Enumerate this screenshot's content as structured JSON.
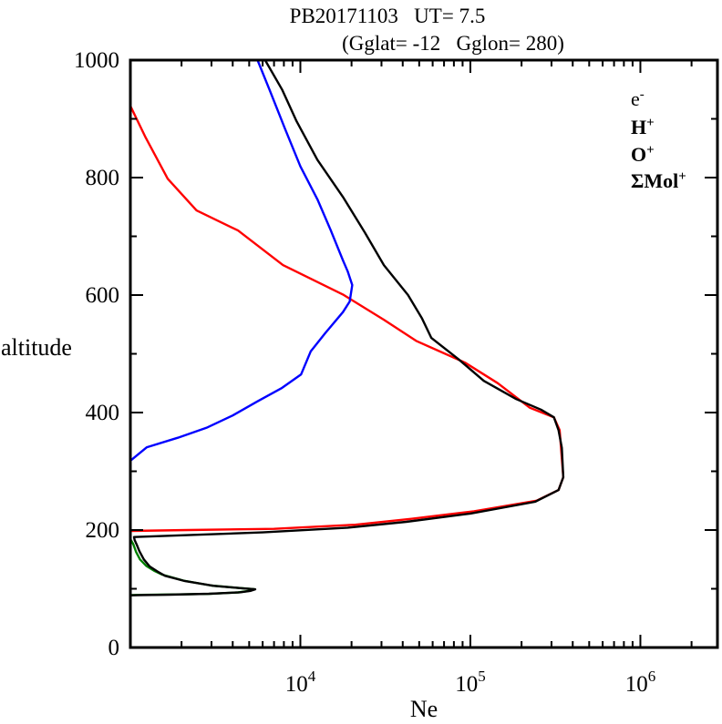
{
  "title": {
    "line1": "PB20171103   UT= 7.5",
    "line2": "(Gglat= -12   Gglon= 280)"
  },
  "axes": {
    "x": {
      "label": "Ne",
      "scale": "log",
      "min": 1000,
      "max": 2840000,
      "major_ticks": [
        {
          "value": 10000,
          "base": "10",
          "exp": "4"
        },
        {
          "value": 100000,
          "base": "10",
          "exp": "5"
        },
        {
          "value": 1000000,
          "base": "10",
          "exp": "6"
        }
      ]
    },
    "y": {
      "label": "altitude",
      "min": 0,
      "max": 1000,
      "major_step": 200,
      "minor_step": 100,
      "major_ticks": [
        {
          "value": 0,
          "label": "0"
        },
        {
          "value": 200,
          "label": "200"
        },
        {
          "value": 400,
          "label": "400"
        },
        {
          "value": 600,
          "label": "600"
        },
        {
          "value": 800,
          "label": "800"
        },
        {
          "value": 1000,
          "label": "1000"
        }
      ]
    }
  },
  "legend": [
    {
      "label": "e",
      "sup": "-",
      "color": "#000000",
      "bold": false
    },
    {
      "label": "H",
      "sup": "+",
      "color": "#0000ff",
      "bold": true
    },
    {
      "label": "O",
      "sup": "+",
      "color": "#ff0000",
      "bold": true
    },
    {
      "label": "ΣMol",
      "sup": "+",
      "color": "#008000",
      "bold": true
    }
  ],
  "chart_data": {
    "type": "line",
    "title": "PB20171103 UT= 7.5 (Gglat= -12 Gglon= 280)",
    "xlabel": "Ne",
    "ylabel": "altitude",
    "x_scale": "log",
    "xlim": [
      1000,
      2840000
    ],
    "ylim": [
      0,
      1000
    ],
    "grid": false,
    "legend_position": "upper right inside",
    "series": [
      {
        "name": "e-",
        "color": "#000000",
        "points": [
          [
            6200,
            1000
          ],
          [
            7800,
            950
          ],
          [
            9500,
            896
          ],
          [
            12600,
            830
          ],
          [
            17800,
            767
          ],
          [
            24000,
            706
          ],
          [
            31000,
            651
          ],
          [
            43000,
            600
          ],
          [
            52000,
            560
          ],
          [
            59000,
            527
          ],
          [
            85000,
            491
          ],
          [
            120000,
            454
          ],
          [
            186000,
            423
          ],
          [
            260000,
            405
          ],
          [
            310000,
            392
          ],
          [
            330000,
            370
          ],
          [
            345000,
            340
          ],
          [
            352000,
            290
          ],
          [
            330000,
            268
          ],
          [
            240000,
            248
          ],
          [
            100000,
            228
          ],
          [
            42000,
            214
          ],
          [
            19000,
            204
          ],
          [
            6000,
            196
          ],
          [
            2000,
            191
          ],
          [
            1050,
            188
          ],
          [
            1060,
            183
          ],
          [
            1090,
            175
          ],
          [
            1130,
            164
          ],
          [
            1200,
            150
          ],
          [
            1300,
            138
          ],
          [
            1450,
            129
          ],
          [
            1600,
            122
          ],
          [
            2100,
            113
          ],
          [
            3100,
            105
          ],
          [
            4700,
            100.5
          ],
          [
            5430,
            99
          ],
          [
            5100,
            96.5
          ],
          [
            4400,
            94
          ],
          [
            2900,
            91.5
          ],
          [
            1700,
            90
          ],
          [
            1200,
            89.3
          ],
          [
            1000,
            88.8
          ]
        ]
      },
      {
        "name": "H+",
        "color": "#0000ff",
        "points": [
          [
            1000,
            318
          ],
          [
            1250,
            341
          ],
          [
            1900,
            357
          ],
          [
            2800,
            374
          ],
          [
            4000,
            395
          ],
          [
            5600,
            419
          ],
          [
            7800,
            442
          ],
          [
            10100,
            465
          ],
          [
            11500,
            504
          ],
          [
            14000,
            535
          ],
          [
            17800,
            571
          ],
          [
            19500,
            589
          ],
          [
            20200,
            617
          ],
          [
            19000,
            640
          ],
          [
            17800,
            659
          ],
          [
            15100,
            710
          ],
          [
            12600,
            763
          ],
          [
            10000,
            819
          ],
          [
            8100,
            884
          ],
          [
            6600,
            949
          ],
          [
            5600,
            1000
          ]
        ]
      },
      {
        "name": "O+",
        "color": "#ff0000",
        "points": [
          [
            1000,
            922
          ],
          [
            1230,
            868
          ],
          [
            1660,
            798
          ],
          [
            2450,
            744
          ],
          [
            4300,
            710
          ],
          [
            7900,
            651
          ],
          [
            17800,
            601
          ],
          [
            31000,
            558
          ],
          [
            48000,
            522
          ],
          [
            93000,
            485
          ],
          [
            145000,
            450
          ],
          [
            224000,
            408
          ],
          [
            310000,
            392
          ],
          [
            335000,
            370
          ],
          [
            352000,
            290
          ],
          [
            330000,
            268
          ],
          [
            245000,
            250
          ],
          [
            105000,
            232
          ],
          [
            45000,
            219
          ],
          [
            21000,
            209
          ],
          [
            7000,
            202
          ],
          [
            2200,
            200
          ],
          [
            1000,
            198.5
          ]
        ]
      },
      {
        "name": "ΣMol+",
        "color": "#008000",
        "points": [
          [
            1000,
            184.5
          ],
          [
            1040,
            176
          ],
          [
            1080,
            163
          ],
          [
            1140,
            150
          ],
          [
            1240,
            139
          ],
          [
            1390,
            130
          ],
          [
            1540,
            124
          ],
          [
            2050,
            114
          ],
          [
            3000,
            105.5
          ],
          [
            4600,
            100.7
          ],
          [
            5350,
            99.2
          ],
          [
            4950,
            96.3
          ],
          [
            4300,
            93.8
          ],
          [
            2850,
            91.2
          ],
          [
            1650,
            90.2
          ],
          [
            1150,
            89.6
          ],
          [
            1000,
            89.2
          ]
        ]
      }
    ]
  }
}
